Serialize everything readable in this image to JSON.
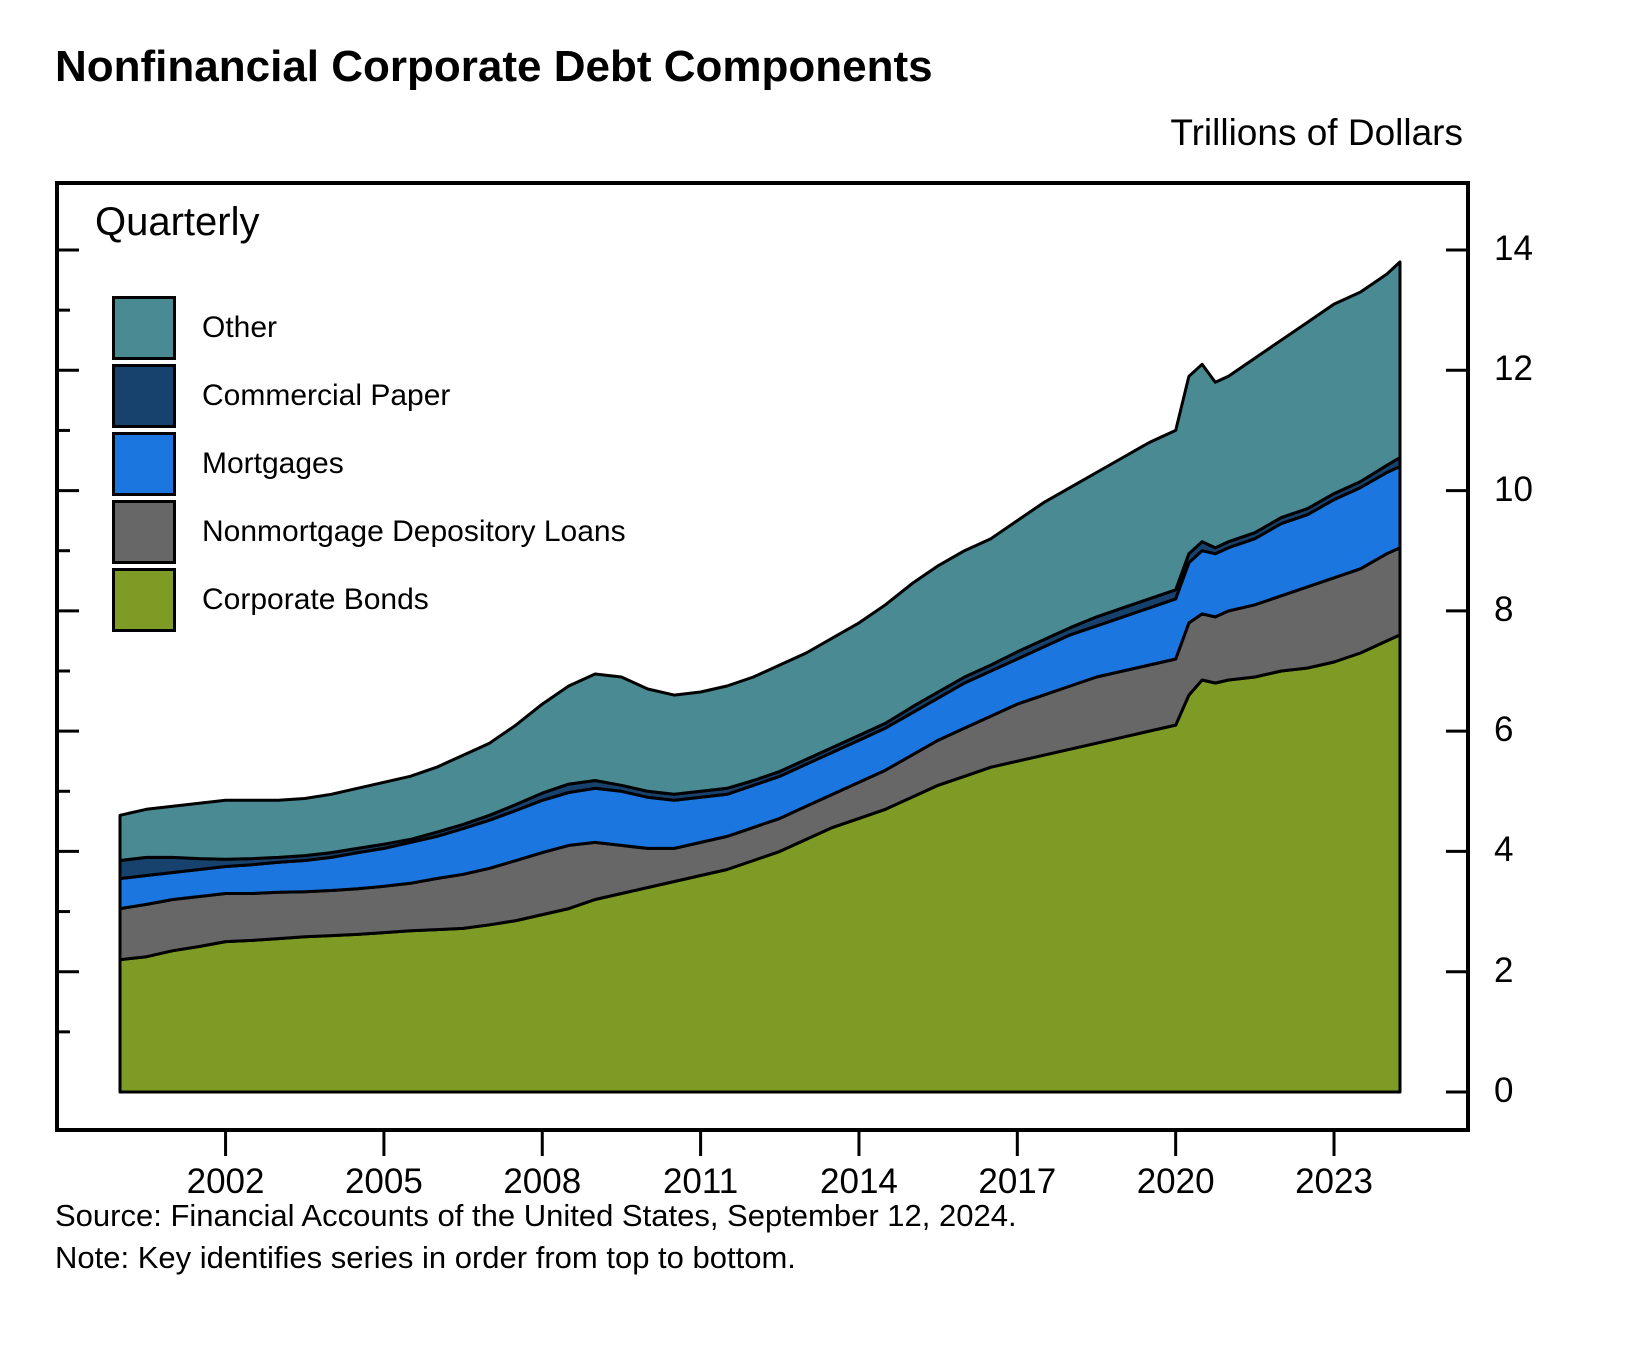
{
  "title": "Nonfinancial Corporate Debt Components",
  "y_axis_title": "Trillions of Dollars",
  "frequency_label": "Quarterly",
  "source_line": "Source: Financial Accounts of the United States, September 12, 2024.",
  "note_line": "Note: Key identifies series in order from top to bottom.",
  "chart_data": {
    "type": "area",
    "stacked": true,
    "title": "Nonfinancial Corporate Debt Components",
    "ylabel": "Trillions of Dollars",
    "frequency": "Quarterly",
    "legend_position": "top-left",
    "legend_order_note": "Key identifies series in order from top to bottom",
    "grid": false,
    "xlim": [
      2000,
      2024.25
    ],
    "ylim": [
      0,
      14
    ],
    "x_ticks": [
      2002,
      2005,
      2008,
      2011,
      2014,
      2017,
      2020,
      2023
    ],
    "y_ticks": [
      0,
      2,
      4,
      6,
      8,
      10,
      12,
      14
    ],
    "x": [
      2000,
      2000.5,
      2001,
      2001.5,
      2002,
      2002.5,
      2003,
      2003.5,
      2004,
      2004.5,
      2005,
      2005.5,
      2006,
      2006.5,
      2007,
      2007.5,
      2008,
      2008.5,
      2009,
      2009.5,
      2010,
      2010.5,
      2011,
      2011.5,
      2012,
      2012.5,
      2013,
      2013.5,
      2014,
      2014.5,
      2015,
      2015.5,
      2016,
      2016.5,
      2017,
      2017.5,
      2018,
      2018.5,
      2019,
      2019.5,
      2020,
      2020.25,
      2020.5,
      2020.75,
      2021,
      2021.5,
      2022,
      2022.5,
      2023,
      2023.5,
      2024,
      2024.25
    ],
    "series": [
      {
        "name": "Other",
        "color": "#4a8b93",
        "values": [
          0.75,
          0.8,
          0.85,
          0.92,
          0.98,
          0.97,
          0.95,
          0.95,
          0.97,
          1.0,
          1.03,
          1.05,
          1.08,
          1.15,
          1.2,
          1.32,
          1.48,
          1.63,
          1.77,
          1.8,
          1.7,
          1.65,
          1.65,
          1.7,
          1.72,
          1.77,
          1.77,
          1.82,
          1.87,
          1.97,
          2.05,
          2.1,
          2.1,
          2.1,
          2.18,
          2.28,
          2.33,
          2.4,
          2.5,
          2.6,
          2.65,
          2.95,
          2.95,
          2.75,
          2.75,
          2.9,
          2.95,
          3.1,
          3.15,
          3.15,
          3.18,
          3.25
        ]
      },
      {
        "name": "Commercial Paper",
        "color": "#17426e",
        "values": [
          0.3,
          0.3,
          0.25,
          0.18,
          0.12,
          0.1,
          0.08,
          0.08,
          0.08,
          0.07,
          0.07,
          0.05,
          0.07,
          0.07,
          0.08,
          0.1,
          0.12,
          0.14,
          0.13,
          0.1,
          0.1,
          0.1,
          0.1,
          0.1,
          0.08,
          0.08,
          0.08,
          0.08,
          0.08,
          0.08,
          0.1,
          0.1,
          0.1,
          0.1,
          0.12,
          0.12,
          0.12,
          0.15,
          0.15,
          0.15,
          0.15,
          0.15,
          0.15,
          0.1,
          0.1,
          0.1,
          0.1,
          0.1,
          0.1,
          0.1,
          0.12,
          0.15
        ]
      },
      {
        "name": "Mortgages",
        "color": "#1b76e0",
        "values": [
          0.5,
          0.48,
          0.45,
          0.45,
          0.45,
          0.48,
          0.5,
          0.52,
          0.55,
          0.6,
          0.63,
          0.68,
          0.7,
          0.76,
          0.8,
          0.83,
          0.87,
          0.88,
          0.9,
          0.9,
          0.85,
          0.8,
          0.75,
          0.7,
          0.7,
          0.7,
          0.7,
          0.7,
          0.7,
          0.7,
          0.7,
          0.7,
          0.75,
          0.75,
          0.75,
          0.8,
          0.85,
          0.85,
          0.9,
          0.95,
          1.0,
          1.0,
          1.05,
          1.05,
          1.05,
          1.1,
          1.2,
          1.2,
          1.3,
          1.35,
          1.35,
          1.35
        ]
      },
      {
        "name": "Nonmortgage Depository Loans",
        "color": "#676767",
        "values": [
          0.85,
          0.87,
          0.85,
          0.83,
          0.8,
          0.78,
          0.77,
          0.75,
          0.75,
          0.76,
          0.77,
          0.79,
          0.85,
          0.9,
          0.94,
          1.0,
          1.03,
          1.05,
          0.95,
          0.8,
          0.65,
          0.55,
          0.55,
          0.55,
          0.55,
          0.55,
          0.55,
          0.55,
          0.6,
          0.65,
          0.7,
          0.75,
          0.8,
          0.85,
          0.95,
          1.0,
          1.05,
          1.1,
          1.1,
          1.1,
          1.1,
          1.2,
          1.1,
          1.1,
          1.15,
          1.2,
          1.25,
          1.35,
          1.4,
          1.4,
          1.45,
          1.45
        ]
      },
      {
        "name": "Corporate Bonds",
        "color": "#7e9b26",
        "values": [
          2.2,
          2.25,
          2.35,
          2.42,
          2.5,
          2.52,
          2.55,
          2.58,
          2.6,
          2.62,
          2.65,
          2.68,
          2.7,
          2.72,
          2.78,
          2.85,
          2.95,
          3.05,
          3.2,
          3.3,
          3.4,
          3.5,
          3.6,
          3.7,
          3.85,
          4.0,
          4.2,
          4.4,
          4.55,
          4.7,
          4.9,
          5.1,
          5.25,
          5.4,
          5.5,
          5.6,
          5.7,
          5.8,
          5.9,
          6.0,
          6.1,
          6.6,
          6.85,
          6.8,
          6.85,
          6.9,
          7.0,
          7.05,
          7.15,
          7.3,
          7.5,
          7.6
        ]
      }
    ]
  }
}
